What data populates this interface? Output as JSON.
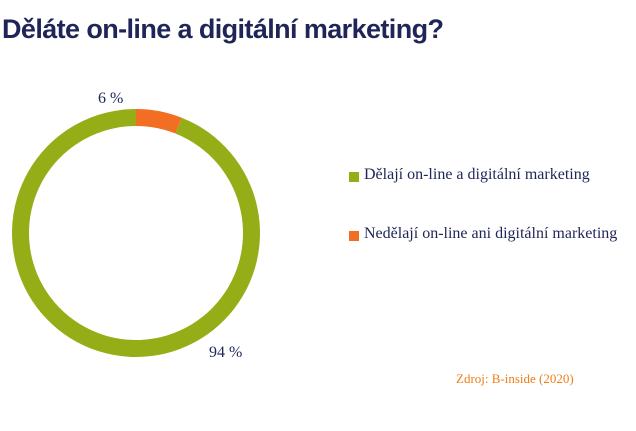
{
  "title": "Děláte on-line a digitální marketing?",
  "chart_data": {
    "type": "pie",
    "variant": "donut",
    "slices": [
      {
        "name": "Dělají on-line a digitální marketing",
        "value": 94,
        "label": "94 %",
        "color": "#95ad17"
      },
      {
        "name": "Nedělají on-line ani digitální marketing",
        "value": 6,
        "label": "6 %",
        "color": "#f26e22"
      }
    ],
    "legend_position": "right"
  },
  "source": {
    "text": "Zdroj: B-inside (2020)",
    "color": "#ef7d1a"
  }
}
